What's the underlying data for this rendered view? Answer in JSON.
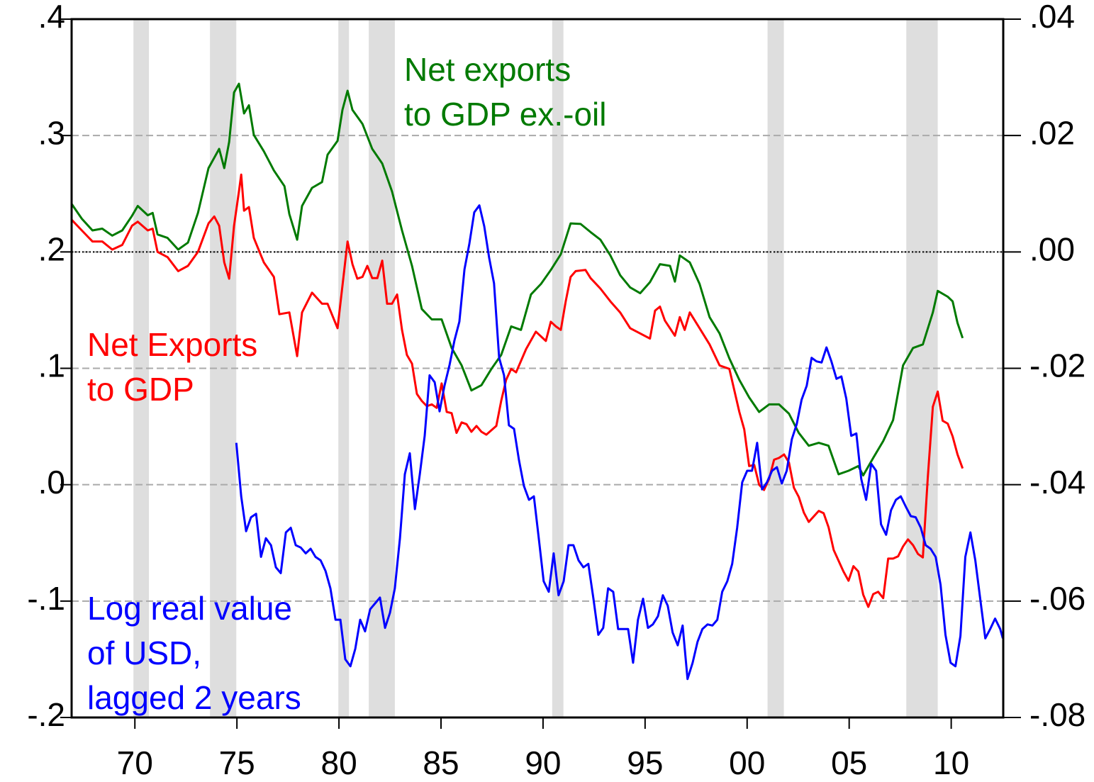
{
  "chart_data": {
    "type": "line",
    "xlim": [
      1966.9,
      2012.55
    ],
    "xticks": [
      {
        "value": 1970,
        "label": "70"
      },
      {
        "value": 1975,
        "label": "75"
      },
      {
        "value": 1980,
        "label": "80"
      },
      {
        "value": 1985,
        "label": "85"
      },
      {
        "value": 1990,
        "label": "90"
      },
      {
        "value": 1995,
        "label": "95"
      },
      {
        "value": 2000,
        "label": "00"
      },
      {
        "value": 2005,
        "label": "05"
      },
      {
        "value": 2010,
        "label": "10"
      }
    ],
    "ylim": [
      -0.2,
      0.4
    ],
    "yticks": [
      {
        "value": 0.4,
        "label": ".4"
      },
      {
        "value": 0.3,
        "label": ".3"
      },
      {
        "value": 0.2,
        "label": ".2"
      },
      {
        "value": 0.1,
        "label": ".1"
      },
      {
        "value": 0,
        "label": ".0"
      },
      {
        "value": -0.1,
        "label": "-.1"
      },
      {
        "value": -0.2,
        "label": "-.2"
      }
    ],
    "y2lim": [
      -0.08,
      0.04
    ],
    "y2ticks": [
      {
        "value": 0.04,
        "label": ".04"
      },
      {
        "value": 0.02,
        "label": ".02"
      },
      {
        "value": 0,
        "label": ".00"
      },
      {
        "value": -0.02,
        "label": "-.02"
      },
      {
        "value": -0.04,
        "label": "-.04"
      },
      {
        "value": -0.06,
        "label": "-.06"
      },
      {
        "value": -0.08,
        "label": "-.08"
      }
    ],
    "grid": true,
    "recessions": [
      [
        1969.93,
        1970.69
      ],
      [
        1973.68,
        1974.97
      ],
      [
        1979.97,
        1980.49
      ],
      [
        1981.46,
        1982.74
      ],
      [
        1990.45,
        1991.0
      ],
      [
        2001.0,
        2001.8
      ],
      [
        2007.8,
        2009.34
      ]
    ],
    "series": [
      {
        "name": [
          "Net exports",
          "to GDP ex.-oil"
        ],
        "color": "#007a00",
        "axis": "y2",
        "x": [
          1966.91,
          1967.4,
          1967.92,
          1968.4,
          1968.89,
          1969.38,
          1969.86,
          1970.14,
          1970.63,
          1970.87,
          1971.11,
          1971.6,
          1972.12,
          1972.6,
          1973.09,
          1973.61,
          1974.13,
          1974.38,
          1974.62,
          1974.86,
          1975.1,
          1975.35,
          1975.59,
          1975.83,
          1976.32,
          1976.81,
          1977.33,
          1977.57,
          1977.95,
          1978.19,
          1978.68,
          1979.17,
          1979.44,
          1979.93,
          1980.17,
          1980.42,
          1980.66,
          1981.15,
          1981.63,
          1982.12,
          1982.6,
          1983.09,
          1983.58,
          1984.06,
          1984.55,
          1985.03,
          1985.52,
          1986.01,
          1986.49,
          1986.98,
          1987.47,
          1987.95,
          1988.44,
          1988.92,
          1989.41,
          1989.9,
          1990.38,
          1990.87,
          1991.35,
          1991.84,
          1992.33,
          1992.81,
          1993.3,
          1993.78,
          1994.27,
          1994.76,
          1995.24,
          1995.73,
          1996.22,
          1996.46,
          1996.7,
          1997.19,
          1997.67,
          1998.16,
          1998.65,
          1999.13,
          1999.62,
          2000.1,
          2000.59,
          2001.08,
          2001.56,
          2002.05,
          2002.53,
          2003.02,
          2003.51,
          2003.99,
          2004.48,
          2004.97,
          2005.45,
          2005.69,
          2006.18,
          2006.67,
          2007.15,
          2007.64,
          2008.13,
          2008.61,
          2009.1,
          2009.34,
          2009.83,
          2010.07,
          2010.31,
          2010.56
        ],
        "values": [
          0.0082,
          0.0057,
          0.0037,
          0.004,
          0.0028,
          0.0037,
          0.0062,
          0.0079,
          0.0063,
          0.0067,
          0.003,
          0.0024,
          0.0004,
          0.0016,
          0.0067,
          0.0144,
          0.0177,
          0.0144,
          0.0189,
          0.0274,
          0.0289,
          0.0238,
          0.0252,
          0.0201,
          0.0173,
          0.014,
          0.0113,
          0.0065,
          0.0021,
          0.0079,
          0.011,
          0.012,
          0.0167,
          0.0191,
          0.0244,
          0.0277,
          0.0244,
          0.022,
          0.0177,
          0.0152,
          0.0104,
          0.0037,
          -0.0024,
          -0.0098,
          -0.0116,
          -0.0116,
          -0.0165,
          -0.0195,
          -0.0238,
          -0.0229,
          -0.0201,
          -0.0177,
          -0.0128,
          -0.0134,
          -0.0073,
          -0.0055,
          -0.0031,
          -0.0004,
          0.0049,
          0.0048,
          0.0034,
          0.0021,
          -0.0006,
          -0.004,
          -0.0061,
          -0.0071,
          -0.0052,
          -0.0021,
          -0.0024,
          -0.0051,
          -0.0006,
          -0.0018,
          -0.0055,
          -0.0112,
          -0.014,
          -0.0183,
          -0.022,
          -0.025,
          -0.0275,
          -0.0262,
          -0.0262,
          -0.0278,
          -0.0311,
          -0.0333,
          -0.0328,
          -0.0333,
          -0.0382,
          -0.0376,
          -0.0368,
          -0.0384,
          -0.0354,
          -0.0325,
          -0.0289,
          -0.0195,
          -0.0165,
          -0.0159,
          -0.0104,
          -0.0067,
          -0.0077,
          -0.0085,
          -0.0122,
          -0.0148
        ]
      },
      {
        "name": [
          "Net Exports",
          "to GDP"
        ],
        "color": "#ff0000",
        "axis": "y2",
        "x": [
          1966.91,
          1967.4,
          1967.92,
          1968.4,
          1968.89,
          1969.38,
          1969.86,
          1970.14,
          1970.63,
          1970.87,
          1971.11,
          1971.6,
          1972.12,
          1972.6,
          1973.09,
          1973.61,
          1973.89,
          1974.13,
          1974.38,
          1974.62,
          1974.86,
          1975.1,
          1975.21,
          1975.35,
          1975.59,
          1975.83,
          1976.32,
          1976.81,
          1977.08,
          1977.57,
          1977.95,
          1978.19,
          1978.68,
          1979.17,
          1979.44,
          1979.93,
          1980.42,
          1980.66,
          1980.9,
          1981.15,
          1981.39,
          1981.63,
          1981.88,
          1982.12,
          1982.36,
          1982.6,
          1982.85,
          1983.09,
          1983.33,
          1983.58,
          1983.82,
          1984.06,
          1984.31,
          1984.55,
          1984.79,
          1985.03,
          1985.28,
          1985.52,
          1985.76,
          1986.01,
          1986.25,
          1986.49,
          1986.74,
          1986.98,
          1987.22,
          1987.71,
          1987.95,
          1988.19,
          1988.44,
          1988.68,
          1989.17,
          1989.65,
          1990.14,
          1990.38,
          1990.63,
          1990.87,
          1991.11,
          1991.35,
          1991.6,
          1992.08,
          1992.33,
          1992.81,
          1993.3,
          1993.78,
          1994.27,
          1994.76,
          1995.24,
          1995.49,
          1995.73,
          1995.97,
          1996.46,
          1996.7,
          1996.94,
          1997.19,
          1997.67,
          1998.16,
          1998.65,
          1999.13,
          1999.62,
          1999.86,
          2000.1,
          2000.35,
          2000.59,
          2000.83,
          2001.08,
          2001.32,
          2001.56,
          2001.81,
          2002.05,
          2002.29,
          2002.53,
          2002.78,
          2003.02,
          2003.51,
          2003.75,
          2003.99,
          2004.24,
          2004.72,
          2004.97,
          2005.21,
          2005.45,
          2005.69,
          2005.94,
          2006.18,
          2006.42,
          2006.67,
          2006.91,
          2007.15,
          2007.4,
          2007.64,
          2007.88,
          2008.13,
          2008.37,
          2008.61,
          2008.85,
          2009.1,
          2009.34,
          2009.58,
          2009.83,
          2010.07,
          2010.31,
          2010.56
        ],
        "values": [
          0.0055,
          0.0037,
          0.0018,
          0.0018,
          0.0004,
          0.0012,
          0.0045,
          0.0052,
          0.0037,
          0.004,
          0.0,
          -0.0009,
          -0.0033,
          -0.0024,
          0.0,
          0.0049,
          0.0061,
          0.0045,
          -0.0018,
          -0.0046,
          0.0045,
          0.0104,
          0.0133,
          0.0071,
          0.0077,
          0.0024,
          -0.0018,
          -0.0043,
          -0.0107,
          -0.0104,
          -0.0179,
          -0.0104,
          -0.007,
          -0.0089,
          -0.0089,
          -0.0131,
          0.0018,
          -0.0021,
          -0.0046,
          -0.0043,
          -0.0024,
          -0.0045,
          -0.0045,
          -0.0015,
          -0.0089,
          -0.0089,
          -0.0073,
          -0.0134,
          -0.0177,
          -0.0192,
          -0.0244,
          -0.0256,
          -0.0265,
          -0.0262,
          -0.0268,
          -0.0226,
          -0.0275,
          -0.0277,
          -0.0311,
          -0.0293,
          -0.0296,
          -0.0309,
          -0.0299,
          -0.0309,
          -0.0314,
          -0.0299,
          -0.0256,
          -0.022,
          -0.0201,
          -0.0207,
          -0.0167,
          -0.0137,
          -0.0153,
          -0.012,
          -0.0128,
          -0.0134,
          -0.0085,
          -0.0043,
          -0.0033,
          -0.0031,
          -0.0045,
          -0.0063,
          -0.0085,
          -0.0104,
          -0.0131,
          -0.014,
          -0.0149,
          -0.0101,
          -0.0094,
          -0.0118,
          -0.0144,
          -0.0112,
          -0.0134,
          -0.0104,
          -0.0131,
          -0.0159,
          -0.0195,
          -0.0201,
          -0.0275,
          -0.0305,
          -0.0368,
          -0.0366,
          -0.04,
          -0.0409,
          -0.039,
          -0.0357,
          -0.0354,
          -0.0348,
          -0.0362,
          -0.0405,
          -0.0421,
          -0.0448,
          -0.0464,
          -0.0445,
          -0.0449,
          -0.0473,
          -0.0512,
          -0.0549,
          -0.0565,
          -0.054,
          -0.0549,
          -0.0589,
          -0.061,
          -0.0588,
          -0.0584,
          -0.0595,
          -0.0527,
          -0.0527,
          -0.0523,
          -0.0506,
          -0.0494,
          -0.0504,
          -0.0519,
          -0.0525,
          -0.0389,
          -0.0266,
          -0.024,
          -0.029,
          -0.0295,
          -0.0317,
          -0.0348,
          -0.0372
        ]
      },
      {
        "name": [
          "Log real value",
          "of USD,",
          "lagged 2 years"
        ],
        "color": "#0000ff",
        "axis": "y",
        "x": [
          1974.97,
          1975.21,
          1975.45,
          1975.69,
          1975.94,
          1976.18,
          1976.42,
          1976.67,
          1976.91,
          1977.15,
          1977.4,
          1977.64,
          1977.88,
          1978.13,
          1978.37,
          1978.61,
          1978.85,
          1979.1,
          1979.34,
          1979.58,
          1979.83,
          1980.07,
          1980.31,
          1980.56,
          1980.8,
          1981.04,
          1981.28,
          1981.53,
          1981.77,
          1982.01,
          1982.26,
          1982.5,
          1982.74,
          1982.99,
          1983.23,
          1983.47,
          1983.72,
          1983.96,
          1984.2,
          1984.44,
          1984.69,
          1984.93,
          1985.17,
          1985.42,
          1985.66,
          1985.9,
          1986.15,
          1986.39,
          1986.63,
          1986.88,
          1987.12,
          1987.36,
          1987.6,
          1987.85,
          1988.09,
          1988.33,
          1988.58,
          1988.82,
          1989.06,
          1989.31,
          1989.55,
          1989.79,
          1990.03,
          1990.28,
          1990.52,
          1990.76,
          1991.01,
          1991.25,
          1991.49,
          1991.74,
          1991.98,
          1992.22,
          1992.47,
          1992.71,
          1992.95,
          1993.19,
          1993.44,
          1993.68,
          1993.92,
          1994.17,
          1994.41,
          1994.65,
          1994.9,
          1995.14,
          1995.38,
          1995.63,
          1995.87,
          1996.11,
          1996.35,
          1996.6,
          1996.84,
          1997.08,
          1997.33,
          1997.57,
          1997.81,
          1998.06,
          1998.3,
          1998.54,
          1998.78,
          1999.03,
          1999.27,
          1999.51,
          1999.76,
          2000.0,
          2000.24,
          2000.49,
          2000.73,
          2000.97,
          2001.22,
          2001.46,
          2001.7,
          2001.94,
          2002.19,
          2002.43,
          2002.67,
          2002.92,
          2003.16,
          2003.4,
          2003.65,
          2003.89,
          2004.13,
          2004.38,
          2004.62,
          2004.86,
          2005.1,
          2005.35,
          2005.59,
          2005.83,
          2006.08,
          2006.32,
          2006.56,
          2006.81,
          2007.05,
          2007.29,
          2007.53,
          2007.78,
          2008.02,
          2008.26,
          2008.51,
          2008.75,
          2008.99,
          2009.24,
          2009.48,
          2009.72,
          2009.97,
          2010.21,
          2010.45,
          2010.69,
          2010.94,
          2011.18,
          2011.42,
          2011.67,
          2011.91,
          2012.15,
          2012.4,
          2012.53
        ],
        "values": [
          0.036,
          -0.01,
          -0.04,
          -0.028,
          -0.025,
          -0.062,
          -0.046,
          -0.052,
          -0.071,
          -0.076,
          -0.041,
          -0.037,
          -0.052,
          -0.054,
          -0.059,
          -0.055,
          -0.062,
          -0.065,
          -0.074,
          -0.089,
          -0.116,
          -0.116,
          -0.15,
          -0.156,
          -0.141,
          -0.116,
          -0.126,
          -0.107,
          -0.102,
          -0.097,
          -0.123,
          -0.11,
          -0.089,
          -0.046,
          0.009,
          0.027,
          -0.021,
          0.009,
          0.042,
          0.094,
          0.088,
          0.063,
          0.085,
          0.103,
          0.124,
          0.14,
          0.185,
          0.207,
          0.234,
          0.24,
          0.222,
          0.195,
          0.173,
          0.109,
          0.094,
          0.051,
          0.048,
          0.021,
          -0.001,
          -0.013,
          -0.01,
          -0.046,
          -0.083,
          -0.092,
          -0.059,
          -0.095,
          -0.083,
          -0.052,
          -0.052,
          -0.065,
          -0.071,
          -0.068,
          -0.098,
          -0.129,
          -0.123,
          -0.089,
          -0.092,
          -0.124,
          -0.124,
          -0.124,
          -0.153,
          -0.116,
          -0.098,
          -0.123,
          -0.12,
          -0.113,
          -0.095,
          -0.104,
          -0.127,
          -0.138,
          -0.121,
          -0.167,
          -0.153,
          -0.135,
          -0.124,
          -0.12,
          -0.121,
          -0.116,
          -0.092,
          -0.083,
          -0.068,
          -0.037,
          0.002,
          0.012,
          0.012,
          0.036,
          -0.004,
          0.002,
          0.012,
          0.015,
          0.001,
          0.012,
          0.039,
          0.052,
          0.073,
          0.085,
          0.109,
          0.106,
          0.105,
          0.118,
          0.106,
          0.091,
          0.093,
          0.074,
          0.042,
          0.044,
          0.005,
          -0.013,
          0.018,
          0.012,
          -0.034,
          -0.043,
          -0.022,
          -0.013,
          -0.01,
          -0.019,
          -0.027,
          -0.028,
          -0.037,
          -0.052,
          -0.055,
          -0.062,
          -0.086,
          -0.129,
          -0.153,
          -0.156,
          -0.13,
          -0.062,
          -0.041,
          -0.065,
          -0.098,
          -0.132,
          -0.124,
          -0.115,
          -0.124,
          -0.132
        ]
      }
    ]
  }
}
